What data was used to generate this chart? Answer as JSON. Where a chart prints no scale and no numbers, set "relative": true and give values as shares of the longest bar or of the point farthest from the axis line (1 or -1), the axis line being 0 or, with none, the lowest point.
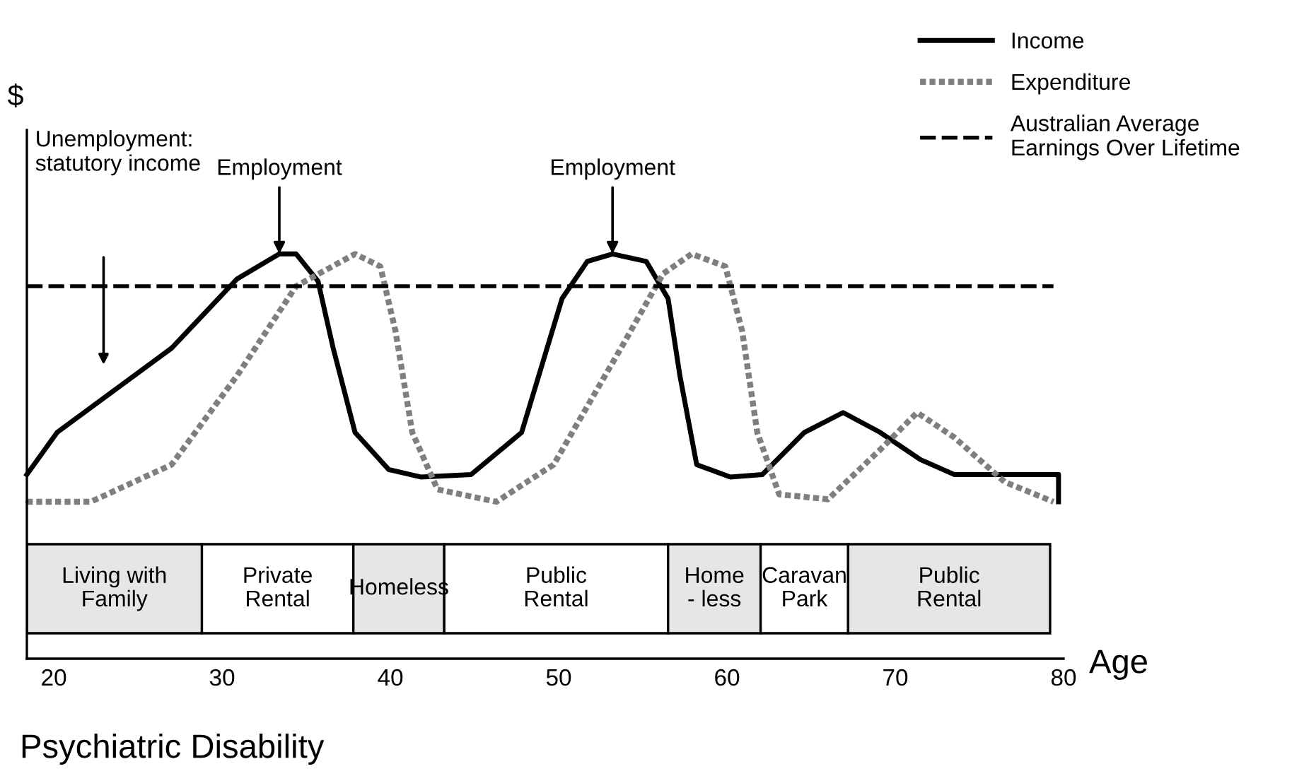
{
  "chart_data": [
    {
      "type": "line",
      "ylabel": "$",
      "relative": true,
      "xlim": [
        18.4,
        80
      ],
      "tick_labels": false,
      "legend": "top right",
      "series": [
        {
          "name": "Income",
          "color": "#000000",
          "line_style": "solid",
          "x": [
            18.4,
            20.2,
            27.0,
            30.9,
            33.4,
            34.4,
            35.7,
            36.6,
            37.9,
            39.9,
            41.8,
            44.8,
            47.8,
            50.2,
            51.7,
            53.2,
            55.2,
            56.5,
            57.2,
            58.2,
            60.2,
            62.1,
            64.6,
            66.9,
            69.1,
            71.5,
            73.5,
            79.7,
            79.7
          ],
          "values": [
            0.11,
            0.28,
            0.62,
            0.9,
            1.0,
            1.0,
            0.89,
            0.62,
            0.28,
            0.13,
            0.1,
            0.11,
            0.28,
            0.82,
            0.97,
            1.0,
            0.97,
            0.82,
            0.51,
            0.15,
            0.1,
            0.11,
            0.28,
            0.36,
            0.28,
            0.17,
            0.11,
            0.11,
            0
          ]
        },
        {
          "name": "Expenditure",
          "color": "#7f7f7f",
          "line_style": "dotted",
          "x": [
            18.4,
            22.2,
            27.0,
            30.9,
            34.4,
            37.9,
            39.4,
            40.3,
            41.3,
            42.8,
            46.3,
            49.7,
            53.7,
            56.2,
            57.9,
            59.9,
            60.9,
            61.8,
            63.1,
            66.0,
            69.1,
            71.3,
            73.5,
            76.5,
            79.4
          ],
          "values": [
            0,
            0,
            0.15,
            0.51,
            0.87,
            1.0,
            0.95,
            0.69,
            0.28,
            0.05,
            0,
            0.15,
            0.62,
            0.92,
            1.0,
            0.95,
            0.69,
            0.28,
            0.03,
            0.01,
            0.21,
            0.36,
            0.26,
            0.08,
            0
          ]
        },
        {
          "name": "Australian Average Earnings Over Lifetime",
          "color": "#000000",
          "line_style": "dashed",
          "x": [
            18.4,
            79.4
          ],
          "values": [
            0.87,
            0.87
          ]
        }
      ],
      "annotations": [
        "Unemployment:\nstatutory income",
        {
          "text": "Employment",
          "x": 33.4,
          "y": 1.0
        },
        {
          "text": "Employment",
          "x": 53.2,
          "y": 1.0
        }
      ]
    },
    {
      "type": "bar",
      "orientation": "horizontal",
      "title": "Psychiatric Disability",
      "xlabel": "Age",
      "categories": [
        null
      ],
      "xlim": [
        18.4,
        80
      ],
      "xticks": [
        20,
        30,
        40,
        50,
        60,
        70,
        80
      ],
      "tick_labels": "x",
      "series": [
        {
          "name": "Living with\nFamily",
          "color": "#e6e6e6",
          "base": [
            18.4
          ],
          "values": [
            10.4
          ]
        },
        {
          "name": "Private\nRental",
          "color": "#ffffff",
          "base": [
            28.8
          ],
          "values": [
            9.0
          ]
        },
        {
          "name": "Homeless",
          "color": "#e6e6e6",
          "base": [
            37.8
          ],
          "values": [
            5.4
          ]
        },
        {
          "name": "Public\nRental",
          "color": "#ffffff",
          "base": [
            43.2
          ],
          "values": [
            13.3
          ]
        },
        {
          "name": "Home\n- less",
          "color": "#e6e6e6",
          "base": [
            56.5
          ],
          "values": [
            5.5
          ]
        },
        {
          "name": "Caravan\nPark",
          "color": "#ffffff",
          "base": [
            62.0
          ],
          "values": [
            5.2
          ]
        },
        {
          "name": "Public\nRental",
          "color": "#e6e6e6",
          "base": [
            67.2
          ],
          "values": [
            12.0
          ]
        }
      ]
    }
  ]
}
